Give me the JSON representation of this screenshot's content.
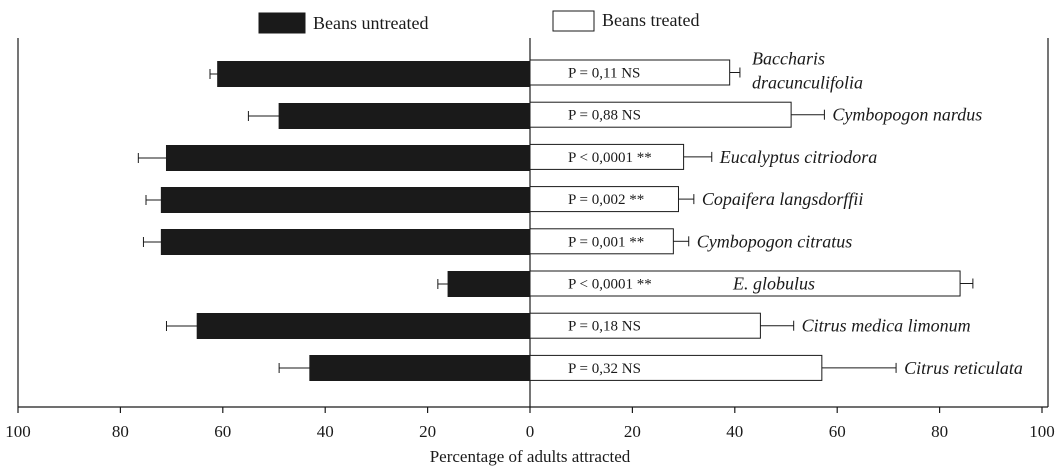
{
  "chart_data": {
    "type": "bar",
    "orientation": "horizontal-diverging",
    "xlabel": "Percentage of adults attracted",
    "xlim": [
      -100,
      100
    ],
    "xticks": [
      -100,
      -80,
      -60,
      -40,
      -20,
      0,
      20,
      40,
      60,
      80,
      100
    ],
    "xtick_labels": [
      "100",
      "80",
      "60",
      "40",
      "20",
      "0",
      "20",
      "40",
      "60",
      "80",
      "100"
    ],
    "legend": {
      "placement": "top",
      "entries": [
        "Beans untreated",
        "Beans treated"
      ]
    },
    "series_colors": {
      "Beans untreated": "#1a1a1a",
      "Beans treated": "#ffffff"
    },
    "categories": [
      [
        "Baccharis",
        "dracunculifolia"
      ],
      [
        "Cymbopogon nardus"
      ],
      [
        "Eucalyptus citriodora"
      ],
      [
        "Copaifera langsdorffii"
      ],
      [
        "Cymbopogon citratus"
      ],
      [
        "E. globulus"
      ],
      [
        "Citrus medica limonum"
      ],
      [
        "Citrus reticulata"
      ]
    ],
    "p_values": [
      "P = 0,11 NS",
      "P = 0,88 NS",
      "P < 0,0001 **",
      "P = 0,002 **",
      "P = 0,001 **",
      "P < 0,0001 **",
      "P = 0,18 NS",
      "P = 0,32 NS"
    ],
    "series": [
      {
        "name": "Beans untreated",
        "values": [
          61,
          49,
          71,
          72,
          72,
          16,
          65,
          43
        ],
        "error": [
          1.5,
          6,
          5.5,
          3,
          3.5,
          2,
          6,
          6
        ]
      },
      {
        "name": "Beans treated",
        "values": [
          39,
          51,
          30,
          29,
          28,
          84,
          45,
          57
        ],
        "error": [
          2,
          6.5,
          5.5,
          3,
          3,
          2.5,
          6.5,
          14.5
        ]
      }
    ]
  }
}
